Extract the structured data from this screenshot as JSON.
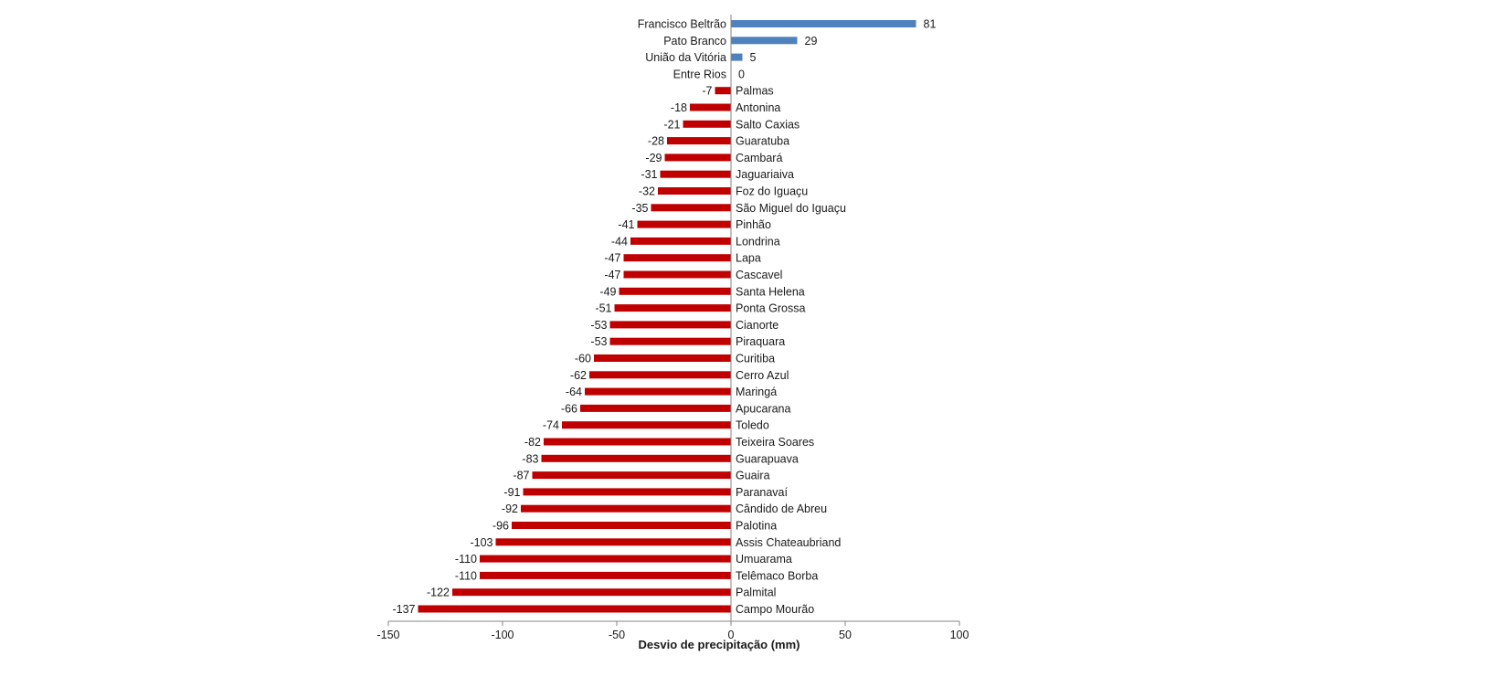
{
  "chart_data": {
    "type": "bar",
    "orientation": "horizontal",
    "categories": [
      "Francisco Beltrão",
      "Pato Branco",
      "União da Vitória",
      "Entre Rios",
      "Palmas",
      "Antonina",
      "Salto Caxias",
      "Guaratuba",
      "Cambará",
      "Jaguariaiva",
      "Foz do Iguaçu",
      "São Miguel do Iguaçu",
      "Pinhão",
      "Londrina",
      "Lapa",
      "Cascavel",
      "Santa Helena",
      "Ponta Grossa",
      "Cianorte",
      "Piraquara",
      "Curitiba",
      "Cerro Azul",
      "Maringá",
      "Apucarana",
      "Toledo",
      "Teixeira Soares",
      "Guarapuava",
      "Guaira",
      "Paranavaí",
      "Cândido de Abreu",
      "Palotina",
      "Assis Chateaubriand",
      "Umuarama",
      "Telêmaco Borba",
      "Palmital",
      "Campo Mourão"
    ],
    "values": [
      81,
      29,
      5,
      0,
      -7,
      -18,
      -21,
      -28,
      -29,
      -31,
      -32,
      -35,
      -41,
      -44,
      -47,
      -47,
      -49,
      -51,
      -53,
      -53,
      -60,
      -62,
      -64,
      -66,
      -74,
      -82,
      -83,
      -87,
      -91,
      -92,
      -96,
      -103,
      -110,
      -110,
      -122,
      -137
    ],
    "value_labels": [
      "81",
      "29",
      "5",
      "0",
      "-7",
      "-18",
      "-21",
      "-28",
      "-29",
      "-31",
      "-32",
      "-35",
      "-41",
      "-44",
      "-47",
      "-47",
      "-49",
      "-51",
      "-53",
      "-53",
      "-60",
      "-62",
      "-64",
      "-66",
      "-74",
      "-82",
      "-83",
      "-87",
      "-91",
      "-92",
      "-96",
      "-103",
      "-110",
      "-110",
      "-122",
      "-137"
    ],
    "xlabel": "Desvio de precipitação (mm)",
    "ylabel": "",
    "title": "",
    "xlim": [
      -150,
      100
    ],
    "xticks": [
      -150,
      -100,
      -50,
      0,
      50,
      100
    ],
    "xtick_labels": [
      "-150",
      "-100",
      "-50",
      "0",
      "50",
      "100"
    ],
    "grid": false,
    "legend": "none",
    "colors": {
      "positive": "#4f81bd",
      "negative": "#c00000",
      "axis": "#868686",
      "text": "#1a1a1a"
    }
  }
}
